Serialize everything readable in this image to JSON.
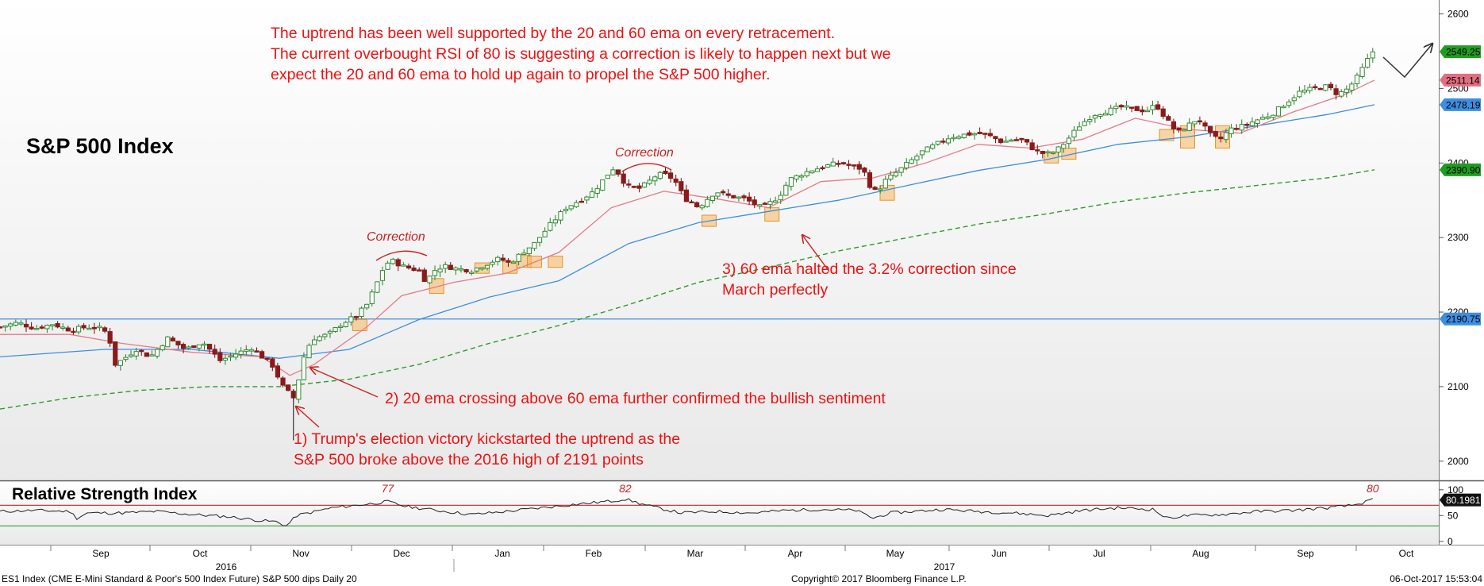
{
  "chart_data": [
    {
      "type": "candlestick",
      "title": "S&P 500 Index",
      "y_ticks": [
        2000,
        2100,
        2200,
        2300,
        2400,
        2500,
        2600
      ],
      "ylim": [
        1987,
        2608
      ],
      "x_month_labels": [
        "Sep",
        "Oct",
        "Nov",
        "Dec",
        "Jan",
        "Feb",
        "Mar",
        "Apr",
        "May",
        "Jun",
        "Jul",
        "Aug",
        "Sep",
        "Oct"
      ],
      "x_year_labels": [
        "2016",
        "2017"
      ],
      "price_tags": [
        {
          "text": "2549.25",
          "value": 2549.25,
          "color": "#1e9e1e"
        },
        {
          "text": "2511.14",
          "value": 2511.14,
          "color": "#e07080"
        },
        {
          "text": "2478.19",
          "value": 2478.19,
          "color": "#3d8ee0"
        },
        {
          "text": "2390.90",
          "value": 2390.9,
          "color": "#1e9e1e"
        },
        {
          "text": "2190.75",
          "value": 2190.75,
          "color": "#3d8ee0"
        }
      ],
      "horizontal_line": {
        "value": 2190.75,
        "color": "#3d8ee0"
      },
      "close_path": [
        [
          0,
          2180
        ],
        [
          10,
          2186
        ],
        [
          20,
          2178
        ],
        [
          30,
          2184
        ],
        [
          40,
          2176
        ],
        [
          50,
          2180
        ],
        [
          58,
          2178
        ],
        [
          62,
          2170
        ],
        [
          66,
          2130
        ],
        [
          70,
          2136
        ],
        [
          78,
          2150
        ],
        [
          86,
          2140
        ],
        [
          96,
          2165
        ],
        [
          106,
          2150
        ],
        [
          116,
          2160
        ],
        [
          126,
          2135
        ],
        [
          136,
          2145
        ],
        [
          144,
          2152
        ],
        [
          150,
          2140
        ],
        [
          156,
          2128
        ],
        [
          162,
          2100
        ],
        [
          166,
          2090
        ],
        [
          168,
          2085
        ],
        [
          171,
          2110
        ],
        [
          175,
          2150
        ],
        [
          180,
          2165
        ],
        [
          188,
          2170
        ],
        [
          196,
          2185
        ],
        [
          204,
          2195
        ],
        [
          210,
          2210
        ],
        [
          216,
          2240
        ],
        [
          220,
          2262
        ],
        [
          224,
          2270
        ],
        [
          230,
          2262
        ],
        [
          236,
          2258
        ],
        [
          240,
          2256
        ],
        [
          244,
          2240
        ],
        [
          248,
          2255
        ],
        [
          254,
          2262
        ],
        [
          262,
          2258
        ],
        [
          270,
          2256
        ],
        [
          276,
          2262
        ],
        [
          282,
          2268
        ],
        [
          286,
          2272
        ],
        [
          292,
          2265
        ],
        [
          298,
          2278
        ],
        [
          306,
          2292
        ],
        [
          316,
          2320
        ],
        [
          324,
          2340
        ],
        [
          332,
          2350
        ],
        [
          340,
          2362
        ],
        [
          348,
          2385
        ],
        [
          352,
          2395
        ],
        [
          356,
          2378
        ],
        [
          360,
          2368
        ],
        [
          366,
          2366
        ],
        [
          370,
          2372
        ],
        [
          376,
          2384
        ],
        [
          380,
          2385
        ],
        [
          386,
          2378
        ],
        [
          392,
          2352
        ],
        [
          396,
          2348
        ],
        [
          400,
          2340
        ],
        [
          404,
          2350
        ],
        [
          410,
          2362
        ],
        [
          416,
          2356
        ],
        [
          422,
          2354
        ],
        [
          426,
          2352
        ],
        [
          432,
          2345
        ],
        [
          436,
          2340
        ],
        [
          440,
          2345
        ],
        [
          446,
          2355
        ],
        [
          452,
          2378
        ],
        [
          458,
          2384
        ],
        [
          464,
          2390
        ],
        [
          470,
          2394
        ],
        [
          476,
          2398
        ],
        [
          482,
          2400
        ],
        [
          488,
          2395
        ],
        [
          494,
          2392
        ],
        [
          498,
          2370
        ],
        [
          502,
          2360
        ],
        [
          506,
          2375
        ],
        [
          512,
          2385
        ],
        [
          520,
          2400
        ],
        [
          528,
          2415
        ],
        [
          536,
          2425
        ],
        [
          544,
          2435
        ],
        [
          552,
          2438
        ],
        [
          560,
          2440
        ],
        [
          568,
          2435
        ],
        [
          574,
          2428
        ],
        [
          580,
          2432
        ],
        [
          586,
          2430
        ],
        [
          592,
          2418
        ],
        [
          598,
          2412
        ],
        [
          604,
          2415
        ],
        [
          610,
          2428
        ],
        [
          618,
          2450
        ],
        [
          626,
          2465
        ],
        [
          634,
          2470
        ],
        [
          642,
          2475
        ],
        [
          650,
          2472
        ],
        [
          656,
          2470
        ],
        [
          662,
          2478
        ],
        [
          668,
          2458
        ],
        [
          674,
          2440
        ],
        [
          680,
          2450
        ],
        [
          686,
          2460
        ],
        [
          692,
          2440
        ],
        [
          698,
          2430
        ],
        [
          704,
          2445
        ],
        [
          712,
          2450
        ],
        [
          720,
          2458
        ],
        [
          728,
          2465
        ],
        [
          736,
          2480
        ],
        [
          744,
          2495
        ],
        [
          752,
          2500
        ],
        [
          760,
          2503
        ],
        [
          766,
          2492
        ],
        [
          772,
          2500
        ],
        [
          778,
          2518
        ],
        [
          782,
          2535
        ],
        [
          786,
          2549.25
        ]
      ],
      "ema20": [
        [
          0,
          2170
        ],
        [
          40,
          2170
        ],
        [
          70,
          2158
        ],
        [
          110,
          2146
        ],
        [
          150,
          2140
        ],
        [
          166,
          2115
        ],
        [
          180,
          2130
        ],
        [
          210,
          2180
        ],
        [
          230,
          2222
        ],
        [
          260,
          2240
        ],
        [
          290,
          2252
        ],
        [
          320,
          2280
        ],
        [
          350,
          2340
        ],
        [
          380,
          2362
        ],
        [
          410,
          2352
        ],
        [
          440,
          2340
        ],
        [
          470,
          2375
        ],
        [
          500,
          2380
        ],
        [
          530,
          2400
        ],
        [
          560,
          2425
        ],
        [
          590,
          2420
        ],
        [
          620,
          2432
        ],
        [
          650,
          2460
        ],
        [
          680,
          2445
        ],
        [
          710,
          2440
        ],
        [
          740,
          2468
        ],
        [
          770,
          2492
        ],
        [
          787,
          2511.14
        ]
      ],
      "ema60": [
        [
          0,
          2140
        ],
        [
          60,
          2150
        ],
        [
          110,
          2150
        ],
        [
          160,
          2138
        ],
        [
          200,
          2150
        ],
        [
          240,
          2190
        ],
        [
          280,
          2220
        ],
        [
          320,
          2242
        ],
        [
          360,
          2292
        ],
        [
          400,
          2320
        ],
        [
          440,
          2335
        ],
        [
          480,
          2350
        ],
        [
          520,
          2370
        ],
        [
          560,
          2390
        ],
        [
          600,
          2405
        ],
        [
          640,
          2425
        ],
        [
          680,
          2435
        ],
        [
          720,
          2450
        ],
        [
          760,
          2465
        ],
        [
          787,
          2478.19
        ]
      ],
      "ema200": [
        [
          0,
          2070
        ],
        [
          40,
          2085
        ],
        [
          80,
          2095
        ],
        [
          120,
          2100
        ],
        [
          160,
          2100
        ],
        [
          200,
          2110
        ],
        [
          240,
          2130
        ],
        [
          280,
          2158
        ],
        [
          320,
          2182
        ],
        [
          360,
          2210
        ],
        [
          400,
          2240
        ],
        [
          440,
          2260
        ],
        [
          480,
          2282
        ],
        [
          520,
          2300
        ],
        [
          560,
          2318
        ],
        [
          600,
          2332
        ],
        [
          640,
          2348
        ],
        [
          680,
          2360
        ],
        [
          720,
          2370
        ],
        [
          760,
          2380
        ],
        [
          787,
          2390.9
        ]
      ],
      "annotations": [
        {
          "id": "note-top",
          "lines": [
            "The uptrend has been well supported by the 20 and 60 ema on every retracement.",
            "The current overbought RSI of 80 is suggesting a correction is likely to happen next but we",
            "expect the 20 and 60 ema to hold up again to propel the S&P 500 higher."
          ]
        },
        {
          "id": "note-1",
          "lines": [
            "1) Trump's election victory kickstarted the uptrend as the",
            "S&P 500 broke above the 2016 high of 2191 points"
          ]
        },
        {
          "id": "note-2",
          "lines": [
            "2) 20 ema crossing above 60 ema further confirmed the bullish sentiment"
          ]
        },
        {
          "id": "note-3",
          "lines": [
            "3) 60 ema halted the 3.2% correction since",
            "March perfectly"
          ]
        },
        {
          "id": "correction-1",
          "lines": [
            "Correction"
          ]
        },
        {
          "id": "correction-2",
          "lines": [
            "Correction"
          ]
        }
      ]
    },
    {
      "type": "line",
      "title": "Relative Strength Index",
      "y_ticks": [
        0,
        50,
        100
      ],
      "ylim": [
        -5,
        112
      ],
      "levels": {
        "overbought": 70,
        "oversold": 30
      },
      "last_value": {
        "text": "80.1981",
        "value": 80.1981
      },
      "peak_labels": [
        {
          "text": "77",
          "x": 222,
          "value": 77
        },
        {
          "text": "82",
          "x": 358,
          "value": 82
        },
        {
          "text": "80",
          "x": 786,
          "value": 80
        }
      ],
      "values": [
        [
          0,
          58
        ],
        [
          20,
          60
        ],
        [
          40,
          58
        ],
        [
          44,
          45
        ],
        [
          50,
          55
        ],
        [
          70,
          55
        ],
        [
          90,
          58
        ],
        [
          110,
          52
        ],
        [
          130,
          48
        ],
        [
          150,
          40
        ],
        [
          158,
          38
        ],
        [
          164,
          30
        ],
        [
          170,
          50
        ],
        [
          190,
          65
        ],
        [
          210,
          72
        ],
        [
          222,
          77
        ],
        [
          232,
          68
        ],
        [
          250,
          60
        ],
        [
          270,
          52
        ],
        [
          290,
          58
        ],
        [
          310,
          65
        ],
        [
          330,
          72
        ],
        [
          350,
          78
        ],
        [
          358,
          82
        ],
        [
          370,
          70
        ],
        [
          390,
          55
        ],
        [
          410,
          58
        ],
        [
          430,
          55
        ],
        [
          450,
          60
        ],
        [
          470,
          62
        ],
        [
          490,
          60
        ],
        [
          500,
          45
        ],
        [
          510,
          55
        ],
        [
          540,
          62
        ],
        [
          560,
          58
        ],
        [
          580,
          55
        ],
        [
          600,
          50
        ],
        [
          620,
          60
        ],
        [
          640,
          65
        ],
        [
          660,
          62
        ],
        [
          668,
          45
        ],
        [
          680,
          50
        ],
        [
          700,
          52
        ],
        [
          720,
          58
        ],
        [
          740,
          60
        ],
        [
          760,
          65
        ],
        [
          775,
          70
        ],
        [
          786,
          80.1981
        ]
      ]
    }
  ],
  "footer": {
    "left": "ES1 Index (CME E-Mini Standard & Poor's 500 Index Future) S&P 500 dips  Daily 20",
    "center": "Copyright© 2017 Bloomberg Finance L.P.",
    "right": "06-Oct-2017 15:53:04"
  }
}
